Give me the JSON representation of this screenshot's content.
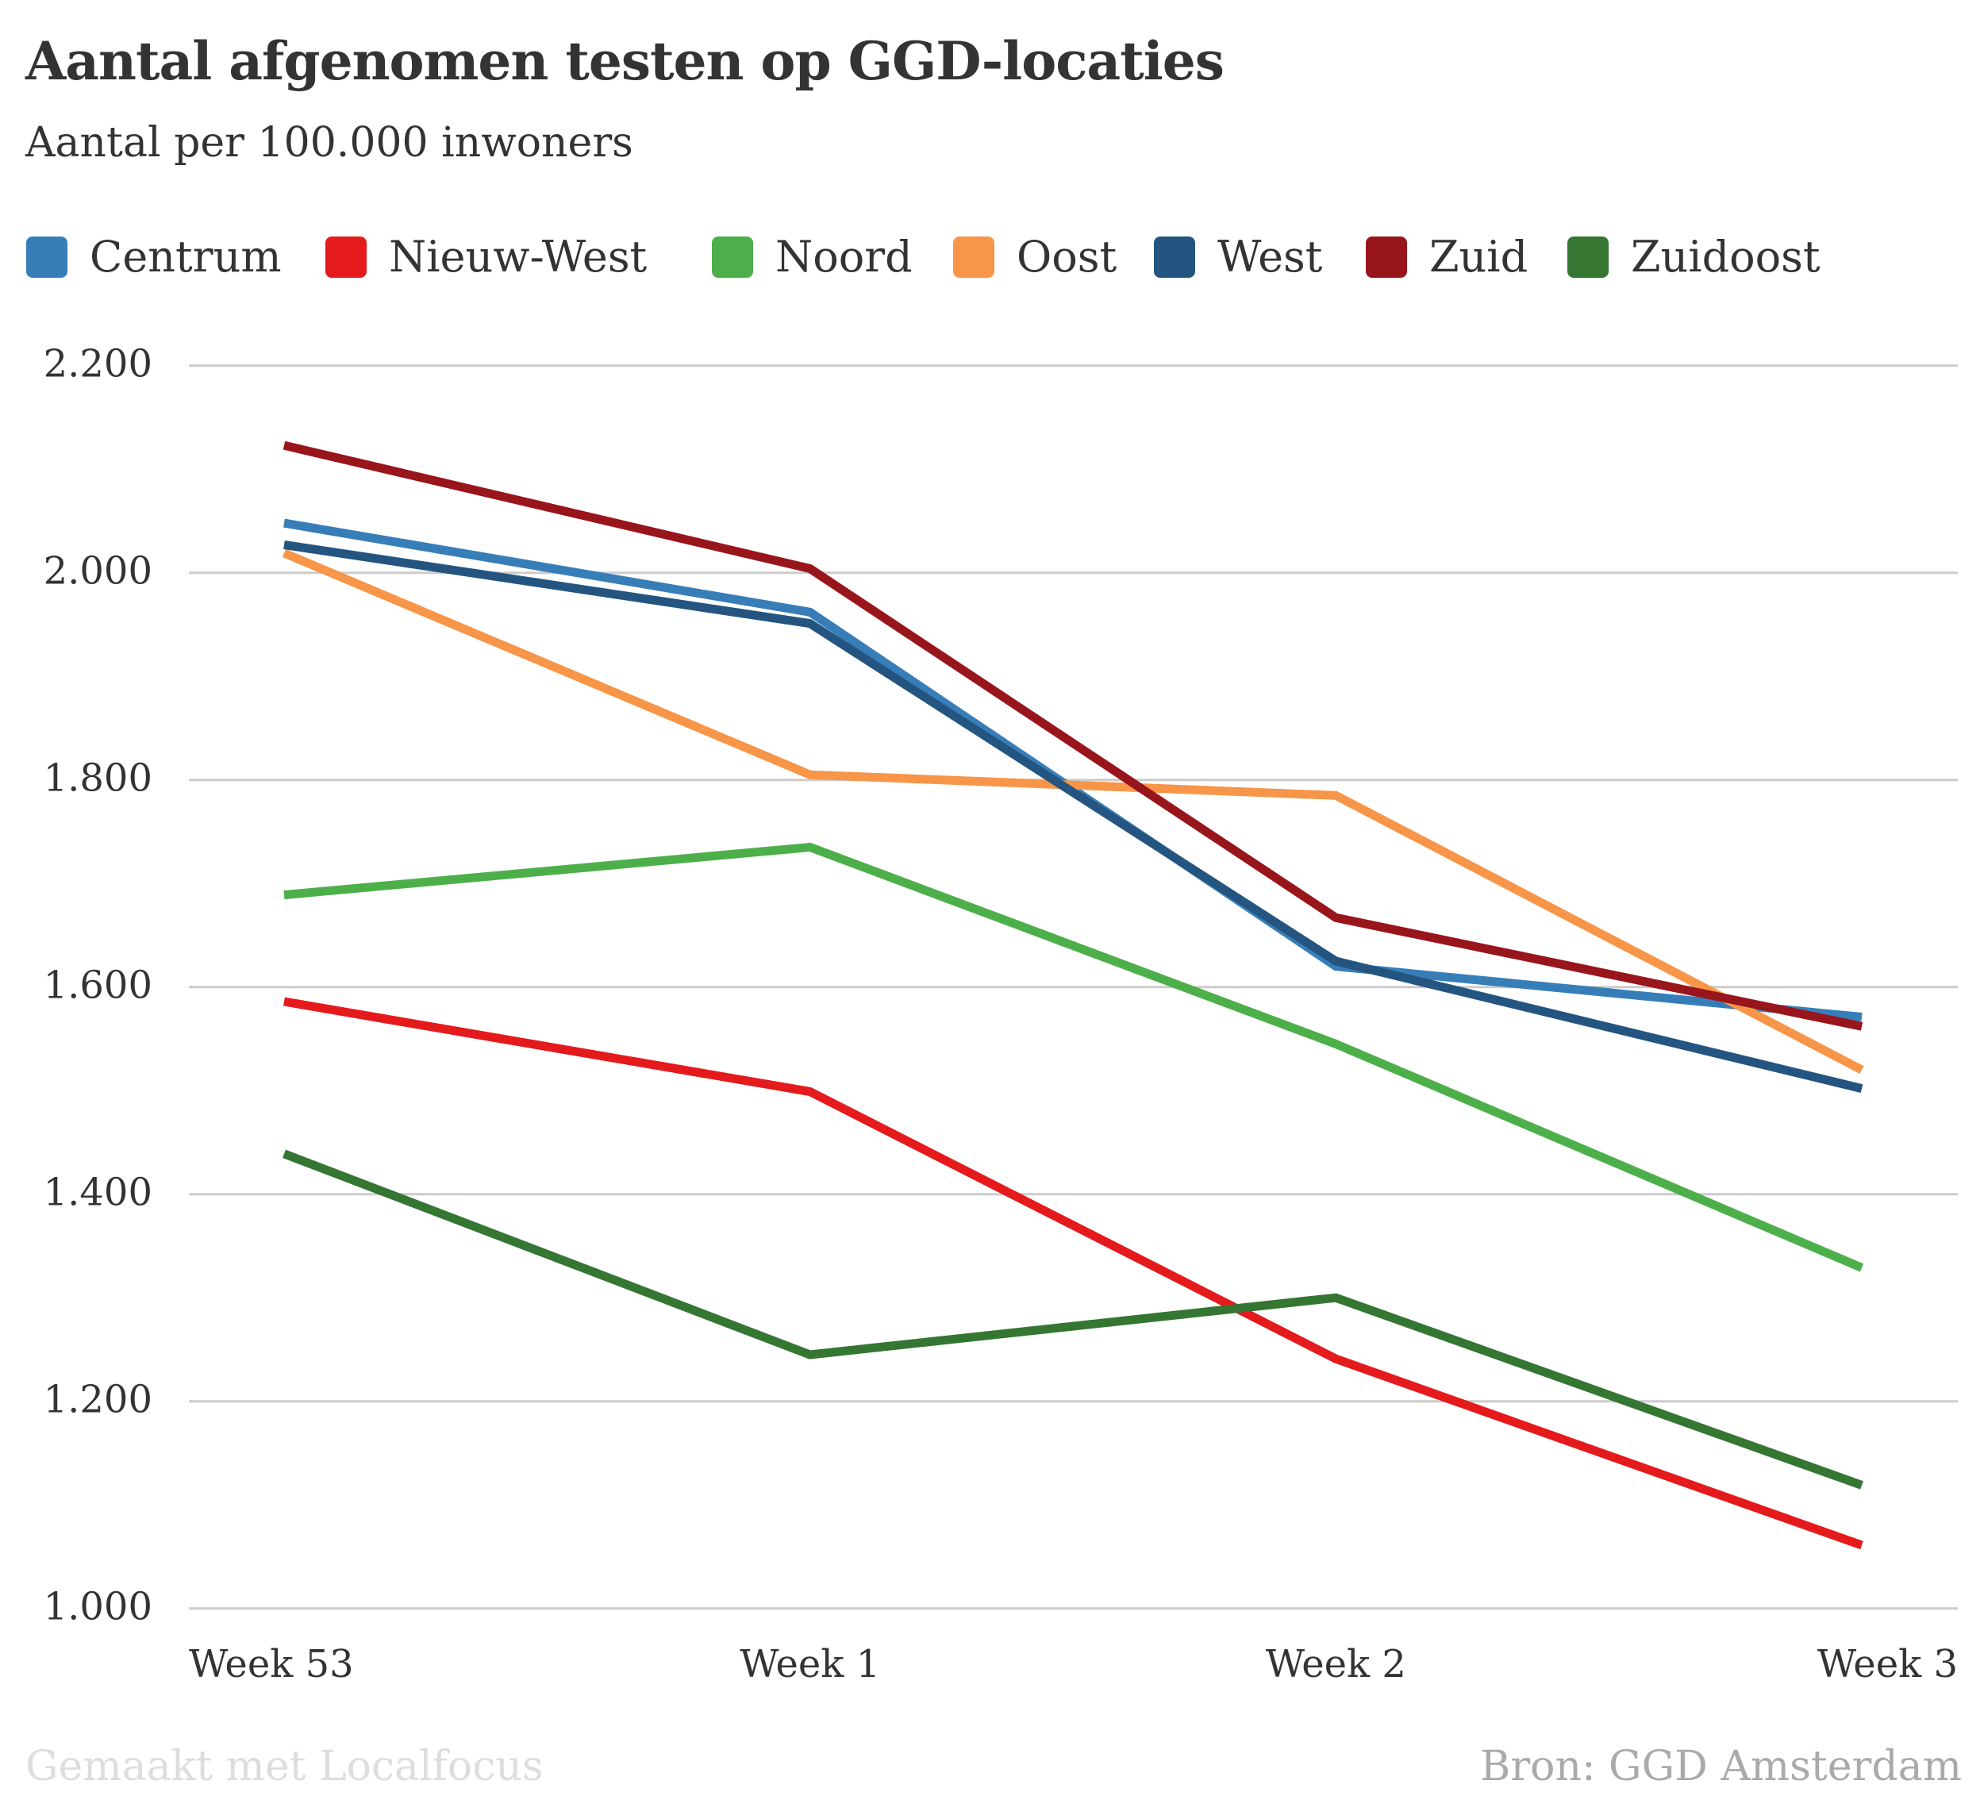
{
  "header": {
    "title": "Aantal afgenomen testen op GGD-locaties",
    "subtitle": "Aantal per 100.000 inwoners"
  },
  "legend": [
    {
      "label": "Centrum",
      "color": "#377eb8"
    },
    {
      "label": "Nieuw-West",
      "color": "#e41a1c"
    },
    {
      "label": "Noord",
      "color": "#4daf4a"
    },
    {
      "label": "Oost",
      "color": "#f79548"
    },
    {
      "label": "West",
      "color": "#245580"
    },
    {
      "label": "Zuid",
      "color": "#99151c"
    },
    {
      "label": "Zuidoost",
      "color": "#347632"
    }
  ],
  "footer": {
    "credit": "Gemaakt met Localfocus",
    "source": "Bron: GGD Amsterdam"
  },
  "chart_data": {
    "type": "line",
    "title": "Aantal afgenomen testen op GGD-locaties",
    "subtitle": "Aantal per 100.000 inwoners",
    "xlabel": "",
    "ylabel": "",
    "categories": [
      "Week 53",
      "Week 1",
      "Week 2",
      "Week 3"
    ],
    "ylim": [
      1000,
      2200
    ],
    "yticks": [
      1000,
      1200,
      1400,
      1600,
      1800,
      2000,
      2200
    ],
    "ytick_labels": [
      "1.000",
      "1.200",
      "1.400",
      "1.600",
      "1.800",
      "2.000",
      "2.200"
    ],
    "grid": "horizontal",
    "legend_position": "top-left",
    "source": "Bron: GGD Amsterdam",
    "series": [
      {
        "name": "Centrum",
        "color": "#377eb8",
        "values": [
          2048,
          1962,
          1620,
          1571
        ]
      },
      {
        "name": "Nieuw-West",
        "color": "#e41a1c",
        "values": [
          1586,
          1499,
          1241,
          1061
        ]
      },
      {
        "name": "Noord",
        "color": "#4daf4a",
        "values": [
          1689,
          1735,
          1545,
          1329
        ]
      },
      {
        "name": "Oost",
        "color": "#f79548",
        "values": [
          2019,
          1805,
          1785,
          1520
        ]
      },
      {
        "name": "West",
        "color": "#245580",
        "values": [
          2027,
          1951,
          1625,
          1502
        ]
      },
      {
        "name": "Zuid",
        "color": "#99151c",
        "values": [
          2123,
          2004,
          1667,
          1562
        ]
      },
      {
        "name": "Zuidoost",
        "color": "#347632",
        "values": [
          1439,
          1245,
          1300,
          1119
        ]
      }
    ]
  }
}
